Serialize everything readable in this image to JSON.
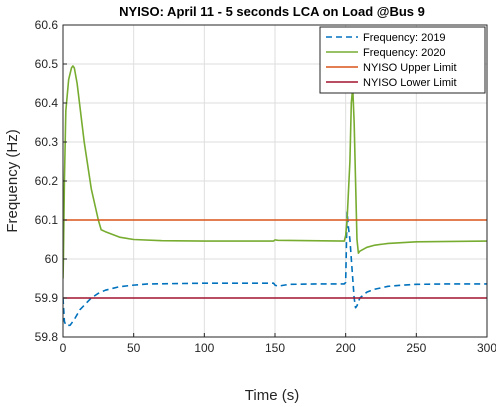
{
  "chart_data": {
    "type": "line",
    "title": "NYISO: April 11 - 5 seconds LCA on Load @Bus 9",
    "xlabel": "Time (s)",
    "ylabel": "Frequency (Hz)",
    "xlim": [
      0,
      300
    ],
    "ylim": [
      59.8,
      60.6
    ],
    "x_ticks": [
      "0",
      "50",
      "100",
      "150",
      "200",
      "250",
      "300"
    ],
    "y_ticks": [
      "59.8",
      "59.9",
      "60",
      "60.1",
      "60.2",
      "60.3",
      "60.4",
      "60.5",
      "60.6"
    ],
    "grid": true,
    "legend_position": "top-right",
    "series": [
      {
        "name": "Frequency: 2019",
        "color": "#0072BD",
        "dash": true,
        "points": [
          [
            0,
            59.9
          ],
          [
            0.5,
            59.87
          ],
          [
            1,
            59.84
          ],
          [
            2,
            59.83
          ],
          [
            5,
            59.83
          ],
          [
            8,
            59.845
          ],
          [
            12,
            59.87
          ],
          [
            16,
            59.885
          ],
          [
            20,
            59.9
          ],
          [
            25,
            59.912
          ],
          [
            30,
            59.92
          ],
          [
            40,
            59.929
          ],
          [
            50,
            59.933
          ],
          [
            60,
            59.936
          ],
          [
            80,
            59.937
          ],
          [
            100,
            59.938
          ],
          [
            120,
            59.938
          ],
          [
            149,
            59.938
          ],
          [
            150,
            59.933
          ],
          [
            152,
            59.93
          ],
          [
            155,
            59.932
          ],
          [
            160,
            59.935
          ],
          [
            180,
            59.936
          ],
          [
            199,
            59.936
          ],
          [
            200,
            59.94
          ],
          [
            201,
            60.12
          ],
          [
            202,
            60.08
          ],
          [
            203,
            60.05
          ],
          [
            204,
            60.0
          ],
          [
            205,
            59.95
          ],
          [
            206,
            59.9
          ],
          [
            207,
            59.875
          ],
          [
            208,
            59.88
          ],
          [
            210,
            59.9
          ],
          [
            215,
            59.915
          ],
          [
            220,
            59.922
          ],
          [
            230,
            59.93
          ],
          [
            240,
            59.933
          ],
          [
            250,
            59.935
          ],
          [
            270,
            59.936
          ],
          [
            300,
            59.936
          ]
        ]
      },
      {
        "name": "Frequency: 2020",
        "color": "#77AC30",
        "dash": false,
        "points": [
          [
            0,
            59.95
          ],
          [
            0.3,
            60.0
          ],
          [
            1,
            60.2
          ],
          [
            2,
            60.38
          ],
          [
            4,
            60.46
          ],
          [
            6,
            60.49
          ],
          [
            7,
            60.495
          ],
          [
            8,
            60.49
          ],
          [
            10,
            60.45
          ],
          [
            12,
            60.39
          ],
          [
            15,
            60.3
          ],
          [
            20,
            60.18
          ],
          [
            25,
            60.1
          ],
          [
            27,
            60.075
          ],
          [
            30,
            60.07
          ],
          [
            40,
            60.056
          ],
          [
            50,
            60.05
          ],
          [
            70,
            60.047
          ],
          [
            100,
            60.046
          ],
          [
            149,
            60.046
          ],
          [
            150,
            60.049
          ],
          [
            152,
            60.048
          ],
          [
            199,
            60.046
          ],
          [
            200,
            60.06
          ],
          [
            201,
            60.1
          ],
          [
            203,
            60.25
          ],
          [
            204,
            60.4
          ],
          [
            205,
            60.44
          ],
          [
            206,
            60.35
          ],
          [
            207,
            60.2
          ],
          [
            208,
            60.05
          ],
          [
            209,
            60.015
          ],
          [
            210,
            60.02
          ],
          [
            215,
            60.03
          ],
          [
            220,
            60.035
          ],
          [
            230,
            60.04
          ],
          [
            250,
            60.044
          ],
          [
            300,
            60.046
          ]
        ]
      },
      {
        "name": "NYISO Upper Limit",
        "color": "#D95319",
        "dash": false,
        "points": [
          [
            0,
            60.1
          ],
          [
            300,
            60.1
          ]
        ]
      },
      {
        "name": "NYISO Lower Limit",
        "color": "#A2142F",
        "dash": false,
        "points": [
          [
            0,
            59.9
          ],
          [
            300,
            59.9
          ]
        ]
      }
    ]
  }
}
